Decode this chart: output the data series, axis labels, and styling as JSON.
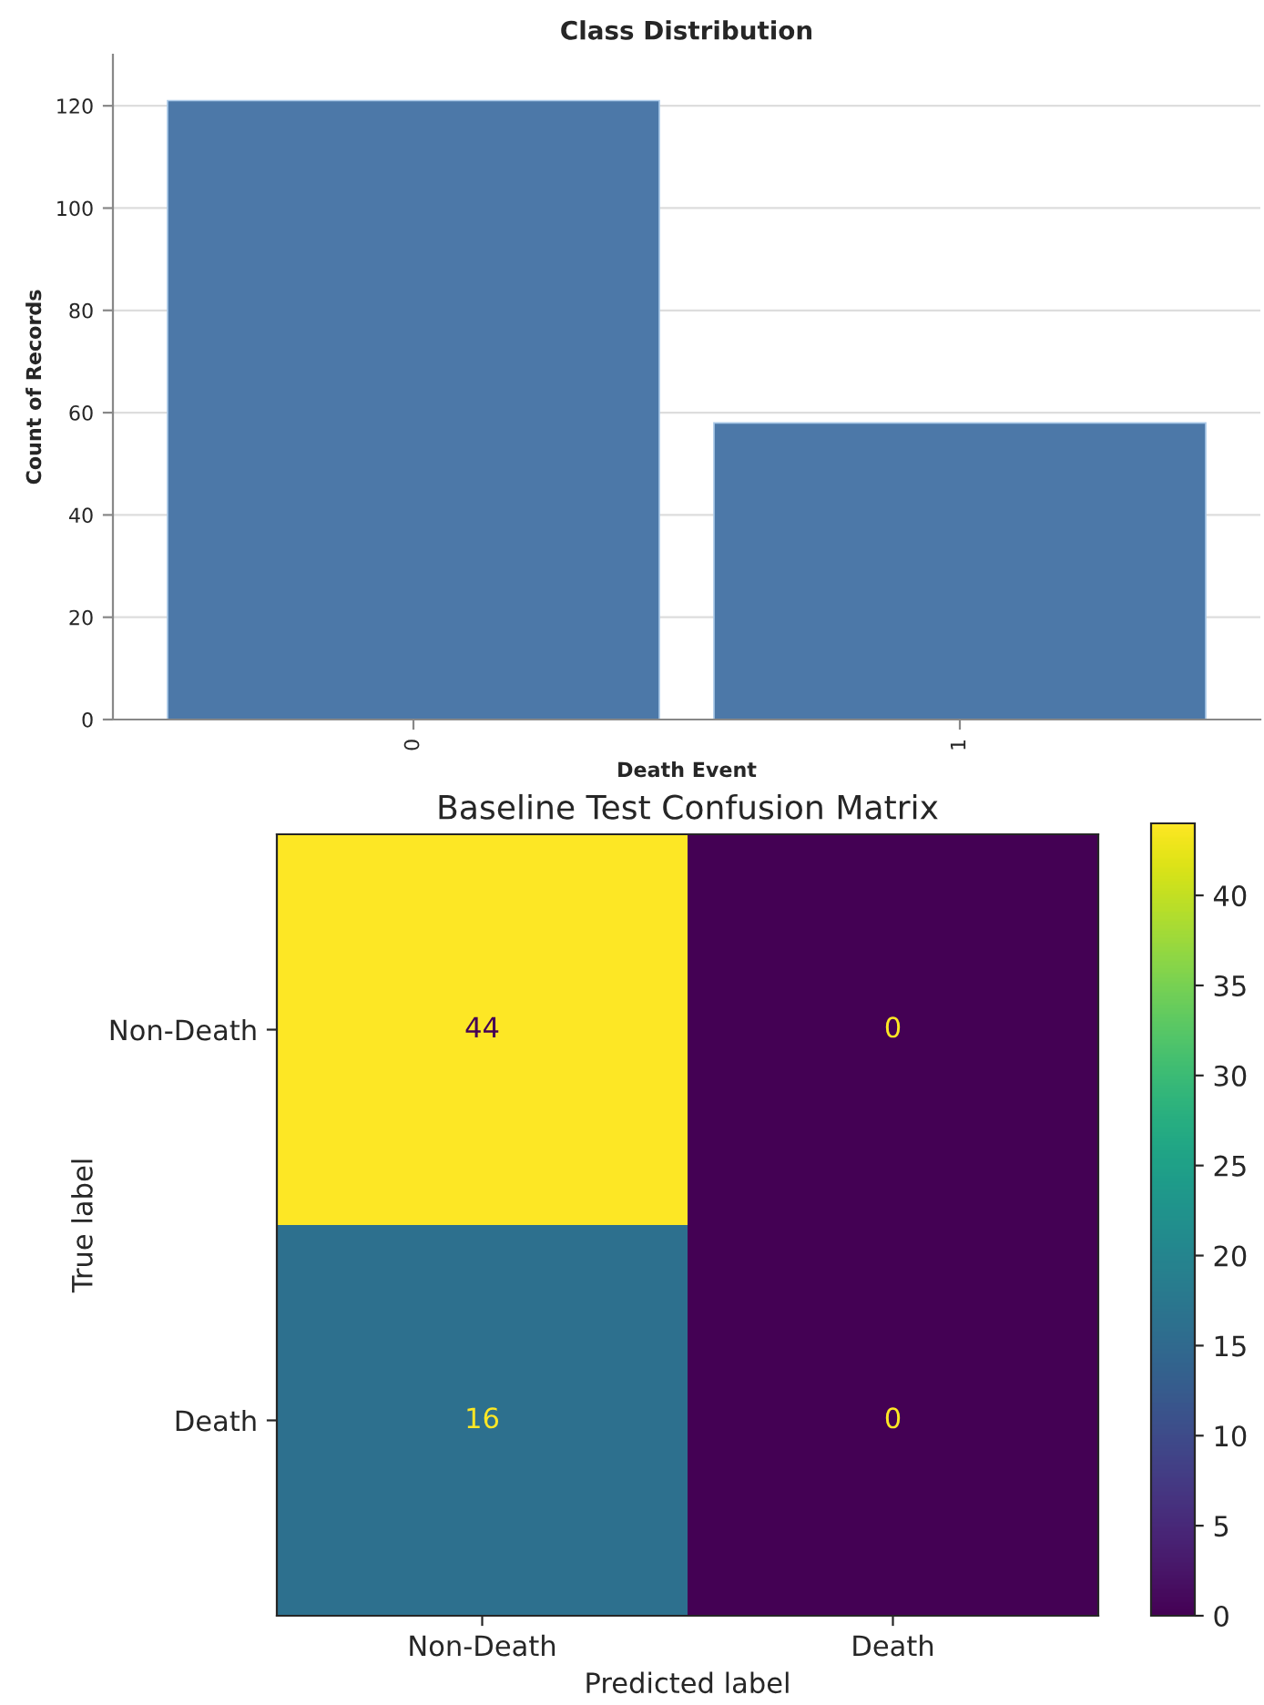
{
  "chart_data": [
    {
      "type": "bar",
      "title": "Class Distribution",
      "xlabel": "Death Event",
      "ylabel": "Count of Records",
      "categories": [
        "0",
        "1"
      ],
      "values": [
        121,
        58
      ],
      "color": "#4c78a8",
      "ylim": [
        0,
        130
      ],
      "yticks": [
        0,
        20,
        40,
        60,
        80,
        100,
        120
      ],
      "grid": "y"
    },
    {
      "type": "heatmap",
      "title": "Baseline Test Confusion Matrix",
      "xlabel": "Predicted label",
      "ylabel": "True label",
      "categories": [
        "Non-Death",
        "Death"
      ],
      "y_categories": [
        "Non-Death",
        "Death"
      ],
      "cells": [
        [
          44,
          0
        ],
        [
          16,
          0
        ]
      ],
      "data_labels": true,
      "clim": [
        0,
        44
      ],
      "cticks": [
        0,
        5,
        10,
        15,
        20,
        25,
        30,
        35,
        40
      ]
    }
  ]
}
